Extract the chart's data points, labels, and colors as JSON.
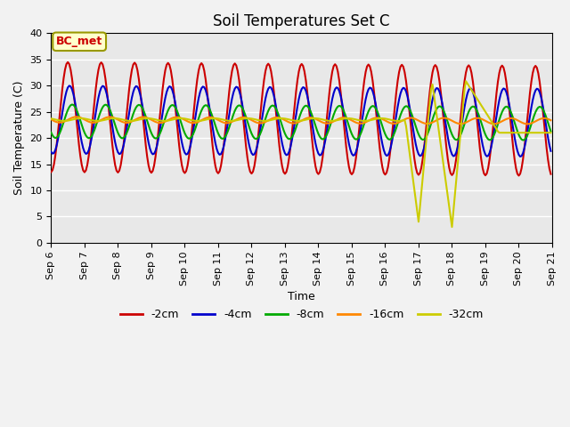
{
  "title": "Soil Temperatures Set C",
  "xlabel": "Time",
  "ylabel": "Soil Temperature (C)",
  "ylim": [
    0,
    40
  ],
  "annotation": "BC_met",
  "bg_color": "#e8e8e8",
  "grid_color": "#ffffff",
  "series": {
    "-2cm": {
      "color": "#cc0000",
      "lw": 1.5
    },
    "-4cm": {
      "color": "#0000cc",
      "lw": 1.5
    },
    "-8cm": {
      "color": "#00aa00",
      "lw": 1.5
    },
    "-16cm": {
      "color": "#ff8800",
      "lw": 1.5
    },
    "-32cm": {
      "color": "#cccc00",
      "lw": 1.5
    }
  },
  "xtick_labels": [
    "Sep 6",
    "Sep 7",
    "Sep 8",
    "Sep 9",
    "Sep 10",
    "Sep 11",
    "Sep 12",
    "Sep 13",
    "Sep 14",
    "Sep 15",
    "Sep 16",
    "Sep 17",
    "Sep 18",
    "Sep 19",
    "Sep 20",
    "Sep 21"
  ],
  "n_days": 15,
  "pts_per_day": 24,
  "amp_2": 10.5,
  "mean_2": 24.0,
  "phase_2": 1.57,
  "amp_4": 6.5,
  "mean_4": 23.5,
  "phase_4": 1.9,
  "amp_8": 3.2,
  "mean_8": 23.2,
  "phase_8": 2.4,
  "amp_16": 0.55,
  "mean_16": 23.5,
  "phase_16": 3.2,
  "amp_32": 0.25,
  "mean_32": 23.5,
  "phase_32": 4.0,
  "yticks": [
    0,
    5,
    10,
    15,
    20,
    25,
    30,
    35,
    40
  ]
}
